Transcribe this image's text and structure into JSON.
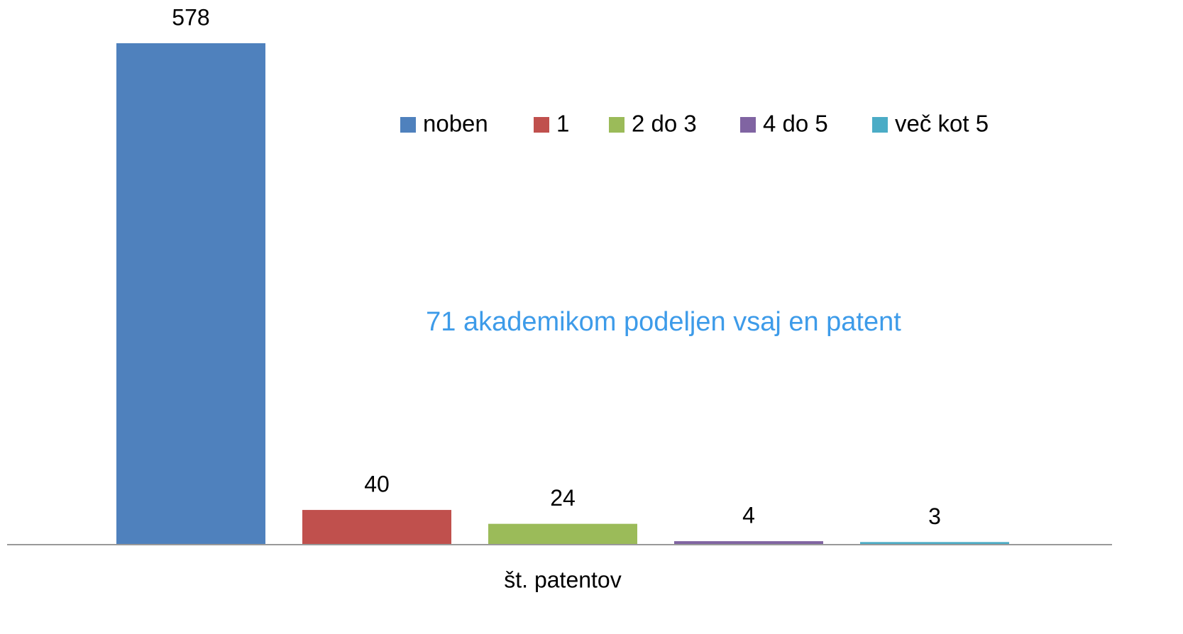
{
  "chart_data": {
    "type": "bar",
    "categories": [
      "št. patentov"
    ],
    "series": [
      {
        "name": "noben",
        "color": "#4f81bd",
        "values": [
          578
        ]
      },
      {
        "name": "1",
        "color": "#c0504d",
        "values": [
          40
        ]
      },
      {
        "name": "2 do 3",
        "color": "#9bbb59",
        "values": [
          24
        ]
      },
      {
        "name": "4 do 5",
        "color": "#8064a2",
        "values": [
          4
        ]
      },
      {
        "name": "več kot 5",
        "color": "#4bacc6",
        "values": [
          3
        ]
      }
    ],
    "ylim": [
      0,
      600
    ],
    "legend": "top",
    "annotation": "71 akademikom podeljen vsaj en patent"
  }
}
